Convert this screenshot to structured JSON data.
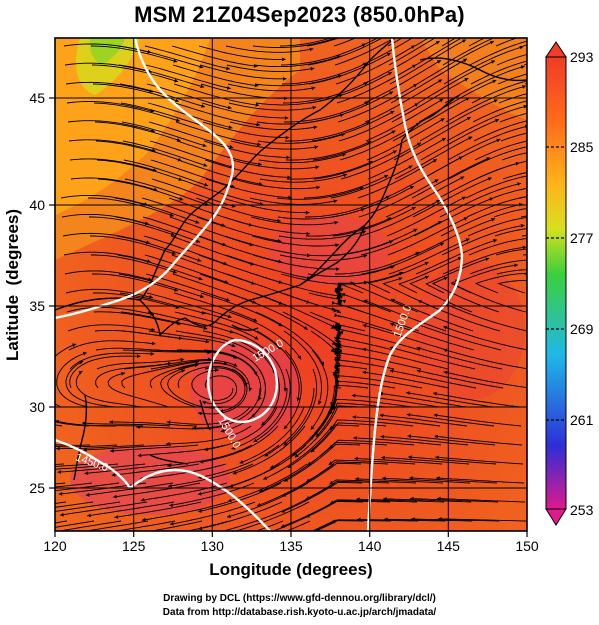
{
  "title": "MSM 21Z04Sep2023 (850.0hPa)",
  "map": {
    "xlabel": "Longitude (degrees)",
    "ylabel": "Latitude  (degrees)",
    "lon_range": [
      120,
      150
    ],
    "lat_range": [
      22.4,
      47.8
    ],
    "lon_ticks": [
      "120",
      "125",
      "130",
      "135",
      "140",
      "145",
      "150"
    ],
    "lat_ticks": [
      "25",
      "30",
      "35",
      "40",
      "45"
    ],
    "contour_labels": [
      "1500.0",
      "1500.0",
      "1500.0",
      "1450.0"
    ],
    "colors": {
      "warm_low": "#f26a1a",
      "warm_mid": "#ee4b1e",
      "warm_high": "#e5356a",
      "cool_band": "#ffa11a",
      "contour": "#ffffff",
      "streamline": "#000000"
    }
  },
  "colorbar": {
    "ticks": [
      "293",
      "285",
      "277",
      "269",
      "261",
      "253"
    ],
    "min": 253,
    "max": 293,
    "colors": [
      "#e0198c",
      "#2e2ed6",
      "#1fb8e8",
      "#3ccf3c",
      "#d7e01e",
      "#ffb31a",
      "#ff6a1a",
      "#f03c28"
    ]
  },
  "credits": {
    "line1": "Drawing by DCL (https://www.gfd-dennou.org/library/dcl/)",
    "line2": "Data from http://database.rish.kyoto-u.ac.jp/arch/jmadata/"
  }
}
